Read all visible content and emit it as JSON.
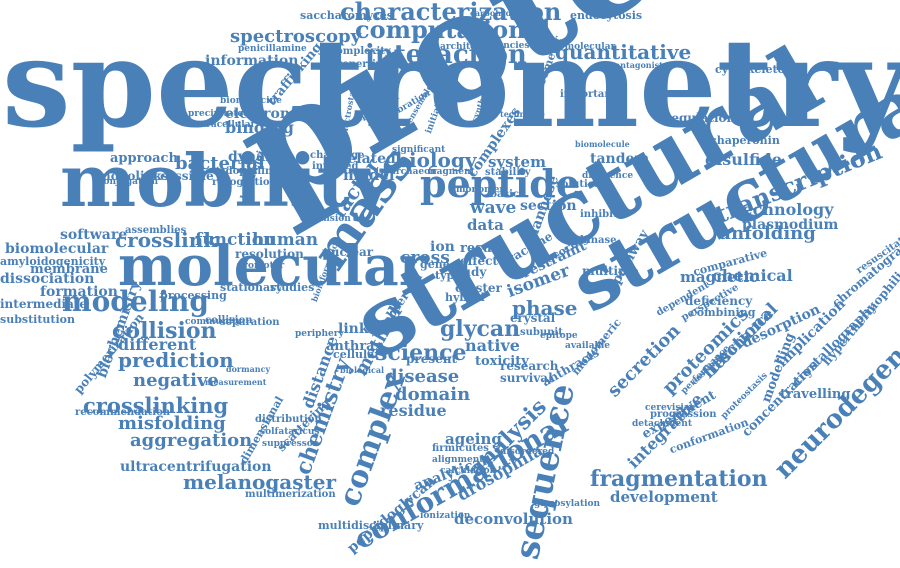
{
  "colors": {
    "word": "#4a80b8",
    "background": "#ffffff"
  },
  "words": [
    {
      "text": "spectrometry",
      "t": "s"
    },
    {
      "text": "protein",
      "t": "pr"
    },
    {
      "text": "structural",
      "t": "st1"
    },
    {
      "text": "structural",
      "t": "st2"
    },
    {
      "text": "mobility",
      "t": "mob"
    },
    {
      "text": "molecular",
      "t": "mol"
    },
    {
      "text": "peptide",
      "t": "pep"
    },
    {
      "text": "characterization",
      "t": "char"
    },
    {
      "text": "computational",
      "t": "comp"
    },
    {
      "text": "interaction",
      "t": "inter"
    },
    {
      "text": "quantitative",
      "t": "quant"
    },
    {
      "text": "spectroscopy",
      "t": "spec"
    },
    {
      "text": "information",
      "t": "info"
    },
    {
      "text": "saccharomyces",
      "t": "sacch"
    },
    {
      "text": "carbohydrate",
      "t": "carb"
    },
    {
      "text": "endocytosis",
      "t": "endo"
    },
    {
      "text": "penicillamine",
      "t": "pen"
    },
    {
      "text": "modeling",
      "t": "modl"
    },
    {
      "text": "crosslink",
      "t": "cl"
    },
    {
      "text": "crosslinking",
      "t": "cli"
    },
    {
      "text": "collision",
      "t": "coll"
    },
    {
      "text": "prediction",
      "t": "pred"
    },
    {
      "text": "negative",
      "t": "neg"
    },
    {
      "text": "misfolding",
      "t": "misf"
    },
    {
      "text": "aggregation",
      "t": "aggr"
    },
    {
      "text": "melanogaster",
      "t": "mela"
    },
    {
      "text": "science",
      "t": "sci"
    },
    {
      "text": "biology",
      "t": "bio"
    },
    {
      "text": "glycan",
      "t": "gly"
    },
    {
      "text": "disease",
      "t": "dis"
    },
    {
      "text": "domain",
      "t": "dom"
    },
    {
      "text": "residue",
      "t": "res"
    },
    {
      "text": "phase",
      "t": "pha"
    },
    {
      "text": "fragmentation",
      "t": "frag"
    },
    {
      "text": "development",
      "t": "dev"
    },
    {
      "text": "deconvolution",
      "t": "deco"
    },
    {
      "text": "drosophila",
      "t": "dros"
    },
    {
      "text": "conformational",
      "t": "conf"
    },
    {
      "text": "sequence",
      "t": "seq"
    },
    {
      "text": "neurodegeneration",
      "t": "neuro"
    },
    {
      "text": "transcription",
      "t": "trans"
    },
    {
      "text": "unfolding",
      "t": "unf"
    },
    {
      "text": "technology",
      "t": "tech"
    },
    {
      "text": "plasmodium",
      "t": "plas"
    },
    {
      "text": "disulfide",
      "t": "disu"
    },
    {
      "text": "chemical",
      "t": "chem"
    },
    {
      "text": "function",
      "t": "func"
    },
    {
      "text": "human",
      "t": "hum"
    },
    {
      "text": "software",
      "t": "soft"
    },
    {
      "text": "biomolecular",
      "t": "biom"
    },
    {
      "text": "membrane",
      "t": "memb"
    },
    {
      "text": "dissociation",
      "t": "diss"
    },
    {
      "text": "formation",
      "t": "form"
    },
    {
      "text": "intermediate",
      "t": "intm"
    },
    {
      "text": "substitution",
      "t": "subs"
    },
    {
      "text": "different",
      "t": "diff"
    },
    {
      "text": "bacterial",
      "t": "bact"
    },
    {
      "text": "approach",
      "t": "appr"
    },
    {
      "text": "dynamic",
      "t": "dyn"
    },
    {
      "text": "related",
      "t": "rel"
    },
    {
      "text": "model",
      "t": "model"
    },
    {
      "text": "system",
      "t": "sys"
    },
    {
      "text": "tandem",
      "t": "tand"
    },
    {
      "text": "isomer",
      "t": "iso"
    },
    {
      "text": "method",
      "t": "meth"
    },
    {
      "text": "complex",
      "t": "cplx"
    },
    {
      "text": "chemistry",
      "t": "chemy"
    },
    {
      "text": "analysis",
      "t": "anal"
    },
    {
      "text": "proteomics",
      "t": "prot"
    },
    {
      "text": "secretion",
      "t": "secr"
    },
    {
      "text": "integrative",
      "t": "integ"
    },
    {
      "text": "functional",
      "t": "funct"
    },
    {
      "text": "resonance",
      "t": "reso"
    },
    {
      "text": "magnetic",
      "t": "magn"
    },
    {
      "text": "desorption",
      "t": "deso"
    },
    {
      "text": "implication",
      "t": "impl"
    },
    {
      "text": "crystallography",
      "t": "crys"
    },
    {
      "text": "chromatography",
      "t": "chrom"
    },
    {
      "text": "hyperthermophilic",
      "t": "hyper"
    },
    {
      "text": "resuscitation",
      "t": "resus"
    },
    {
      "text": "modelling",
      "t": "mdlg"
    },
    {
      "text": "concentration",
      "t": "conc"
    },
    {
      "text": "travelling",
      "t": "trav"
    },
    {
      "text": "experiment",
      "t": "expe"
    },
    {
      "text": "conformation",
      "t": "confo"
    },
    {
      "text": "mass",
      "t": "mass"
    },
    {
      "text": "factor",
      "t": "fact"
    },
    {
      "text": "wave",
      "t": "wave"
    },
    {
      "text": "data",
      "t": "data"
    },
    {
      "text": "cross",
      "t": "cross"
    },
    {
      "text": "native",
      "t": "nat"
    },
    {
      "text": "toxicity",
      "t": "tox"
    },
    {
      "text": "crystal",
      "t": "cryst"
    },
    {
      "text": "restraint",
      "t": "restr"
    },
    {
      "text": "linked",
      "t": "link"
    },
    {
      "text": "anthrax",
      "t": "anth"
    },
    {
      "text": "distance",
      "t": "dist"
    },
    {
      "text": "ageing",
      "t": "age"
    },
    {
      "text": "analytical",
      "t": "analyt"
    },
    {
      "text": "peptidoglycan",
      "t": "pgly"
    },
    {
      "text": "multidisciplinary",
      "t": "mdis"
    },
    {
      "text": "ultracentrifugation",
      "t": "ultra"
    },
    {
      "text": "polymerization",
      "t": "poly"
    },
    {
      "text": "biochemistry",
      "t": "bchem"
    },
    {
      "text": "amyloidogenicity",
      "t": "amy"
    },
    {
      "text": "assemblies",
      "t": "asse"
    },
    {
      "text": "processing",
      "t": "proc"
    },
    {
      "text": "stationary",
      "t": "stat"
    },
    {
      "text": "studies",
      "t": "stud"
    },
    {
      "text": "collision",
      "t": "coll2"
    },
    {
      "text": "separation",
      "t": "sep"
    },
    {
      "text": "recommendation",
      "t": "reco"
    },
    {
      "text": "dimensional",
      "t": "dime"
    },
    {
      "text": "scattering",
      "t": "scat"
    },
    {
      "text": "distribution",
      "t": "distr"
    },
    {
      "text": "solfataricus",
      "t": "solf"
    },
    {
      "text": "suppressor",
      "t": "supp"
    },
    {
      "text": "multimerization",
      "t": "multi"
    },
    {
      "text": "glycosylation",
      "t": "glyco"
    },
    {
      "text": "firmicutes",
      "t": "firm"
    },
    {
      "text": "alignment",
      "t": "alig"
    },
    {
      "text": "calculation",
      "t": "calc"
    },
    {
      "text": "disordered",
      "t": "diso"
    },
    {
      "text": "regulation",
      "t": "reg"
    },
    {
      "text": "monolinks",
      "t": "mono"
    },
    {
      "text": "accessible",
      "t": "acc"
    },
    {
      "text": "endophilin",
      "t": "endph"
    },
    {
      "text": "recognition",
      "t": "recog"
    },
    {
      "text": "binding",
      "t": "bind"
    },
    {
      "text": "electron",
      "t": "elec"
    },
    {
      "text": "biomedicine",
      "t": "biomed"
    },
    {
      "text": "precipitated",
      "t": "prec"
    },
    {
      "text": "intracellular",
      "t": "intra"
    },
    {
      "text": "trafficking",
      "t": "traf"
    },
    {
      "text": "properties",
      "t": "propr"
    },
    {
      "text": "complexity",
      "t": "cmpx"
    },
    {
      "text": "architecture",
      "t": "arch"
    },
    {
      "text": "deficiencies",
      "t": "defi"
    },
    {
      "text": "macromolecular",
      "t": "macro"
    },
    {
      "text": "antagonist",
      "t": "antag"
    },
    {
      "text": "cytoskeleton",
      "t": "cyto"
    },
    {
      "text": "challenge",
      "t": "chal"
    },
    {
      "text": "involved",
      "t": "invo"
    },
    {
      "text": "archaeon",
      "t": "arch2"
    },
    {
      "text": "fragment",
      "t": "frag2"
    },
    {
      "text": "stability",
      "t": "stab"
    },
    {
      "text": "solution",
      "t": "solu"
    },
    {
      "text": "difference",
      "t": "diffe"
    },
    {
      "text": "chaperonin",
      "t": "chap"
    },
    {
      "text": "section",
      "t": "sect"
    },
    {
      "text": "monomer",
      "t": "monom"
    },
    {
      "text": "result",
      "t": "resu"
    },
    {
      "text": "effect",
      "t": "eff"
    },
    {
      "text": "study",
      "t": "study"
    },
    {
      "text": "cluster",
      "t": "clus"
    },
    {
      "text": "basic",
      "t": "basic"
    },
    {
      "text": "multiple",
      "t": "mult"
    },
    {
      "text": "deficiency",
      "t": "defc"
    },
    {
      "text": "combining",
      "t": "comb"
    },
    {
      "text": "present",
      "t": "pres"
    },
    {
      "text": "research",
      "t": "rese"
    },
    {
      "text": "survival",
      "t": "surv"
    },
    {
      "text": "ionization",
      "t": "ioni"
    },
    {
      "text": "cerevisiae",
      "t": "cere"
    },
    {
      "text": "progression",
      "t": "progr"
    },
    {
      "text": "mannose",
      "t": "mann"
    },
    {
      "text": "vaccine",
      "t": "vacc"
    },
    {
      "text": "scoring",
      "t": "scor"
    },
    {
      "text": "anthracis",
      "t": "anthc"
    },
    {
      "text": "monomeric",
      "t": "monoc"
    },
    {
      "text": "pathway",
      "t": "path"
    },
    {
      "text": "comparative",
      "t": "compa"
    },
    {
      "text": "dependent",
      "t": "depe"
    },
    {
      "text": "perspective",
      "t": "pers"
    },
    {
      "text": "hybrid",
      "t": "hyb"
    },
    {
      "text": "type",
      "t": "type"
    },
    {
      "text": "ion",
      "t": "ion"
    },
    {
      "text": "cellular",
      "t": "cell"
    },
    {
      "text": "biological",
      "t": "biol"
    },
    {
      "text": "observed",
      "t": "obse"
    },
    {
      "text": "nuclear",
      "t": "nucl"
    },
    {
      "text": "resolution",
      "t": "reso2"
    },
    {
      "text": "promoter",
      "t": "promo"
    },
    {
      "text": "expansion",
      "t": "expa"
    },
    {
      "text": "community",
      "t": "commu"
    },
    {
      "text": "periphery",
      "t": "peri"
    },
    {
      "text": "measurement",
      "t": "meas"
    },
    {
      "text": "dormancy",
      "t": "dorm"
    },
    {
      "text": "subunit",
      "t": "subu"
    },
    {
      "text": "epitope",
      "t": "epit"
    },
    {
      "text": "available",
      "t": "avai"
    },
    {
      "text": "important",
      "t": "impo"
    },
    {
      "text": "biochemical",
      "t": "bioc"
    },
    {
      "text": "spectrometer",
      "t": "spmr"
    },
    {
      "text": "significant",
      "t": "sign"
    },
    {
      "text": "complexes",
      "t": "cmplxs"
    },
    {
      "text": "expression",
      "t": "expr"
    },
    {
      "text": "calibration",
      "t": "cali"
    },
    {
      "text": "conjugation",
      "t": "conj"
    },
    {
      "text": "ensemble",
      "t": "ens"
    },
    {
      "text": "initiation",
      "t": "init"
    },
    {
      "text": "detachment",
      "t": "deta"
    },
    {
      "text": "proteostasis",
      "t": "prsts"
    },
    {
      "text": "performance",
      "t": "perf"
    },
    {
      "text": "ensembles",
      "t": "enss"
    },
    {
      "text": "gene",
      "t": "gene"
    },
    {
      "text": "kinase",
      "t": "kin"
    },
    {
      "text": "inhibitor",
      "t": "inhib"
    },
    {
      "text": "bioinformatics",
      "t": "bioinf"
    },
    {
      "text": "technique",
      "t": "techn"
    },
    {
      "text": "synthetic",
      "t": "synth"
    },
    {
      "text": "electrostatic",
      "t": "estat"
    },
    {
      "text": "biomolecule",
      "t": "bmol"
    }
  ]
}
